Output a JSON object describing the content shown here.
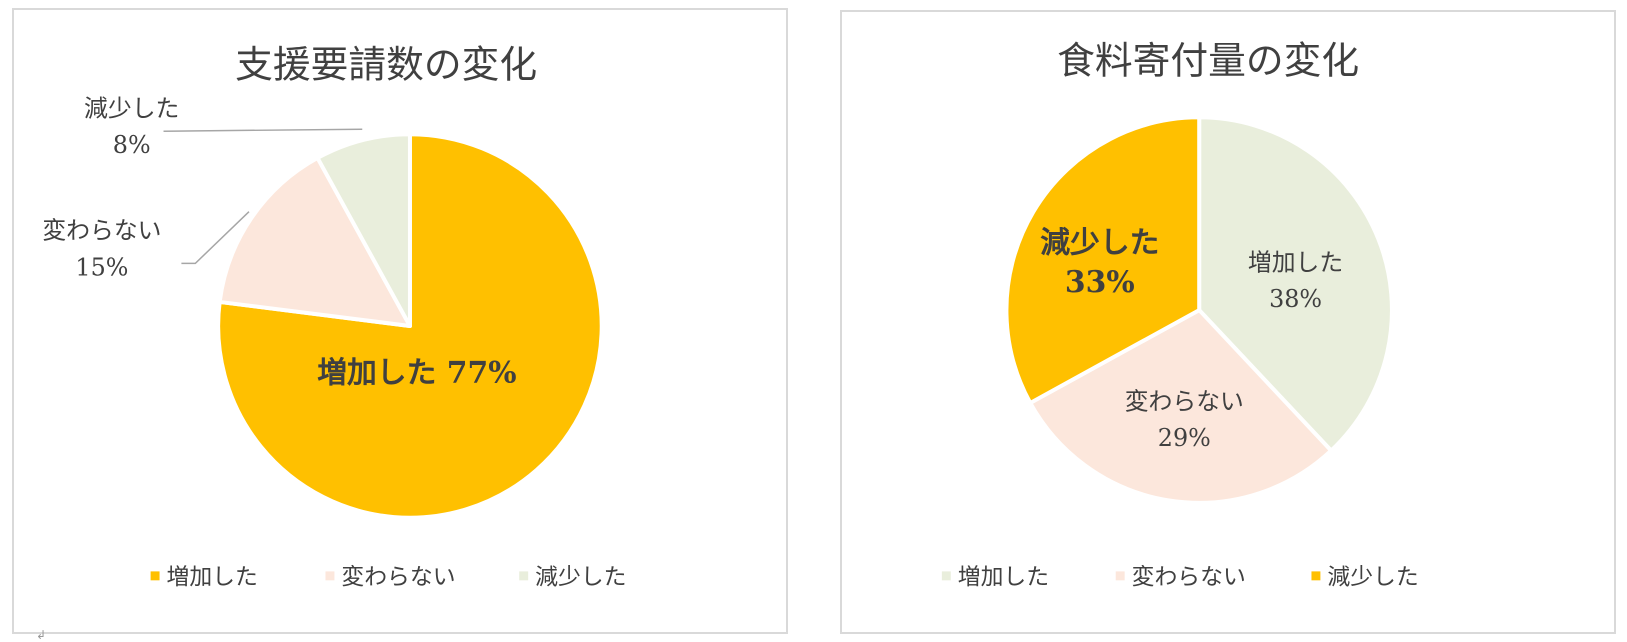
{
  "chart_data": [
    {
      "type": "pie",
      "title": "支援要請数の変化",
      "categories": [
        "増加した",
        "変わらない",
        "減少した"
      ],
      "values": [
        77,
        15,
        8
      ],
      "value_labels": [
        "77%",
        "15%",
        "8%"
      ],
      "colors": [
        "#FFC000",
        "#FCE7DC",
        "#E9EEDC"
      ],
      "legend": "bottom"
    },
    {
      "type": "pie",
      "title": "食料寄付量の変化",
      "categories": [
        "増加した",
        "変わらない",
        "減少した"
      ],
      "values": [
        38,
        29,
        33
      ],
      "value_labels": [
        "38%",
        "29%",
        "33%"
      ],
      "colors": [
        "#E9EEDC",
        "#FCE7DC",
        "#FFC000"
      ],
      "legend": "bottom"
    }
  ]
}
